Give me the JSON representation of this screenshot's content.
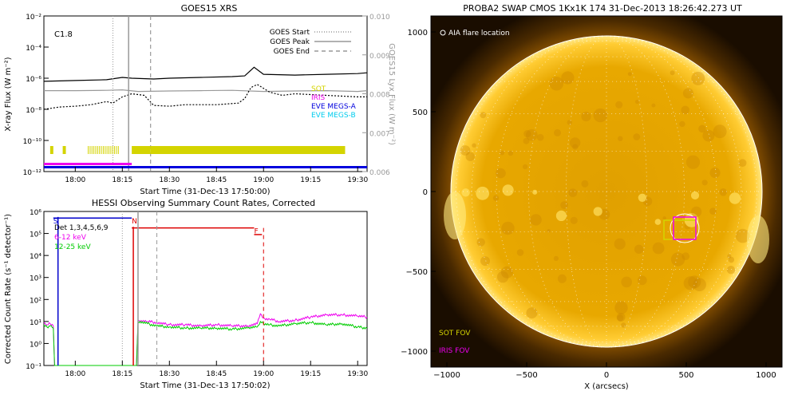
{
  "chart_data": [
    {
      "type": "line",
      "title": "GOES15 XRS",
      "xlabel": "Start Time (31-Dec-13 17:50:00)",
      "ylabel": "X-ray Flux (W m⁻²)",
      "y2label": "GOES15 Lyx Flux (W m⁻²)",
      "x_ticks": [
        "18:00",
        "18:15",
        "18:30",
        "18:45",
        "19:00",
        "19:15",
        "19:30"
      ],
      "x_minutes": [
        10,
        25,
        40,
        55,
        70,
        85,
        100
      ],
      "xlim_minutes": [
        0,
        103
      ],
      "y_log": true,
      "ylim_exp": [
        -12,
        -2
      ],
      "y_ticks": [
        "10⁻²",
        "10⁻⁴",
        "10⁻⁶",
        "10⁻⁸",
        "10⁻¹⁰",
        "10⁻¹²"
      ],
      "y_tick_exp": [
        -2,
        -4,
        -6,
        -8,
        -10,
        -12
      ],
      "y2lim": [
        0.006,
        0.01
      ],
      "y2_ticks": [
        "0.010",
        "0.009",
        "0.008",
        "0.007",
        "0.006"
      ],
      "y2_tick_values": [
        0.01,
        0.009,
        0.008,
        0.007,
        0.006
      ],
      "annotation": "C1.8",
      "legend": [
        {
          "label": "GOES Start",
          "style": "dotted"
        },
        {
          "label": "GOES Peak",
          "style": "solid"
        },
        {
          "label": "GOES End",
          "style": "dashed"
        }
      ],
      "coverage_legend": [
        {
          "label": "SOT",
          "color": "#d4d400"
        },
        {
          "label": "IRIS",
          "color": "#ee00ee"
        },
        {
          "label": "EVE MEGS-A",
          "color": "#0000dd"
        },
        {
          "label": "EVE MEGS-B",
          "color": "#00ccee"
        }
      ],
      "event_lines_minutes": {
        "start": 22,
        "peak": 27,
        "end": 34
      },
      "series": [
        {
          "name": "",
          "color": "#000000",
          "x": [
            0,
            10,
            20,
            25,
            28,
            35,
            40,
            50,
            60,
            64,
            67,
            70,
            80,
            90,
            100,
            103
          ],
          "log_y": [
            -6.2,
            -6.15,
            -6.1,
            -5.95,
            -6.0,
            -6.05,
            -6.0,
            -5.95,
            -5.9,
            -5.85,
            -5.3,
            -5.75,
            -5.8,
            -5.75,
            -5.7,
            -5.65
          ]
        },
        {
          "name": "",
          "color": "#999999",
          "x": [
            0,
            10,
            20,
            25,
            30,
            40,
            50,
            60,
            70,
            80,
            90,
            100,
            103
          ],
          "log_y": [
            -6.8,
            -6.8,
            -6.78,
            -6.75,
            -6.85,
            -6.82,
            -6.8,
            -6.78,
            -6.85,
            -6.82,
            -6.8,
            -6.85,
            -6.8
          ]
        },
        {
          "name": "",
          "color": "#000000",
          "dash": "2,2",
          "x": [
            0,
            5,
            10,
            15,
            20,
            22,
            25,
            28,
            32,
            35,
            40,
            45,
            55,
            62,
            64,
            66,
            68,
            72,
            76,
            80,
            90,
            100,
            103
          ],
          "log_y": [
            -8.0,
            -7.85,
            -7.8,
            -7.7,
            -7.5,
            -7.6,
            -7.2,
            -7.0,
            -7.1,
            -7.75,
            -7.8,
            -7.7,
            -7.7,
            -7.6,
            -7.3,
            -6.6,
            -6.4,
            -6.9,
            -7.1,
            -7.0,
            -7.1,
            -7.2,
            -7.2
          ]
        }
      ],
      "coverage_bars": {
        "sot_segments": [
          [
            2,
            3
          ],
          [
            6,
            7
          ],
          [
            14,
            24
          ],
          [
            28,
            34
          ],
          [
            34,
            96
          ]
        ],
        "iris_range": [
          0,
          28
        ],
        "eve_range": [
          0,
          103
        ]
      }
    },
    {
      "type": "line",
      "title": "HESSI Observing Summary Count Rates, Corrected",
      "xlabel": "Start Time (31-Dec-13 17:50:02)",
      "ylabel": "Corrected Count Rate (s⁻¹ detector⁻¹)",
      "x_ticks": [
        "18:00",
        "18:15",
        "18:30",
        "18:45",
        "19:00",
        "19:15",
        "19:30"
      ],
      "x_minutes": [
        10,
        25,
        40,
        55,
        70,
        85,
        100
      ],
      "xlim_minutes": [
        0,
        103
      ],
      "y_log": true,
      "ylim_exp": [
        -1,
        6
      ],
      "y_ticks": [
        "10⁶",
        "10⁵",
        "10⁴",
        "10³",
        "10²",
        "10¹",
        "10⁰",
        "10⁻¹"
      ],
      "y_tick_exp": [
        6,
        5,
        4,
        3,
        2,
        1,
        0,
        -1
      ],
      "legend_text": [
        {
          "label": "Det 1,3,4,5,6,9",
          "color": "#000000"
        },
        {
          "label": "6-12 keV",
          "color": "#ee00ee"
        },
        {
          "label": "12-25 keV",
          "color": "#00cc00"
        }
      ],
      "flag_labels": [
        {
          "label": "S",
          "color": "#0000cc",
          "minute": 3
        },
        {
          "label": "N",
          "color": "#dd0000",
          "minute": 28
        },
        {
          "label": "F",
          "color": "#dd0000",
          "minute": 67
        }
      ],
      "event_lines_minutes": {
        "start": 25,
        "peak": 30,
        "end": 36,
        "flare_end": 70,
        "saa": 4.5
      },
      "series": [
        {
          "name": "6-12 keV",
          "color": "#ee00ee",
          "x": [
            0,
            1,
            2,
            3,
            3.4,
            29.5,
            30,
            33,
            36,
            40,
            45,
            50,
            55,
            60,
            65,
            68,
            69,
            70,
            72,
            75,
            80,
            85,
            90,
            95,
            100,
            103
          ],
          "log_y": [
            0.95,
            0.85,
            0.9,
            0.8,
            -1,
            -1,
            1.05,
            1.0,
            0.95,
            0.85,
            0.85,
            0.8,
            0.85,
            0.8,
            0.8,
            0.9,
            1.35,
            1.15,
            1.1,
            1.0,
            1.05,
            1.2,
            1.3,
            1.3,
            1.25,
            1.2
          ]
        },
        {
          "name": "12-25 keV",
          "color": "#00cc00",
          "x": [
            0,
            1,
            2,
            3,
            3.4,
            29.5,
            30,
            33,
            36,
            40,
            45,
            50,
            55,
            60,
            65,
            68,
            69,
            70,
            72,
            75,
            80,
            85,
            90,
            95,
            100,
            103
          ],
          "log_y": [
            0.85,
            0.75,
            0.8,
            0.7,
            -1,
            -1,
            1.0,
            0.9,
            0.8,
            0.75,
            0.7,
            0.7,
            0.7,
            0.65,
            0.7,
            0.75,
            1.0,
            0.9,
            0.85,
            0.8,
            0.9,
            0.95,
            0.85,
            0.9,
            0.75,
            0.7
          ]
        }
      ],
      "status_bars": [
        {
          "color": "#0000cc",
          "range": [
            3,
            28
          ],
          "log_y": 5.7
        },
        {
          "color": "#dd0000",
          "range": [
            28,
            67
          ],
          "log_y": 5.25
        },
        {
          "color": "#dd0000",
          "range": [
            67,
            69.5
          ],
          "log_y": 4.95
        }
      ]
    },
    {
      "type": "scatter",
      "title": "PROBA2 SWAP CMOS 1Kx1K 174 31-Dec-2013 18:26:42.273 UT",
      "xlabel": "X (arcsecs)",
      "ylabel": "",
      "xlim": [
        -1100,
        1100
      ],
      "ylim": [
        -1100,
        1100
      ],
      "x_ticks": [
        -1000,
        -500,
        0,
        500,
        1000
      ],
      "y_ticks": [
        1000,
        500,
        0,
        -500,
        -1000
      ],
      "x_tick_labels": [
        "−1000",
        "−500",
        "0",
        "500",
        "1000"
      ],
      "y_tick_labels": [
        "1000",
        "500",
        "0",
        "−500",
        "−1000"
      ],
      "solar_radius_arcsec": 975,
      "legend": [
        {
          "label": "AIA flare location",
          "color": "#ffffff",
          "marker": "circle"
        },
        {
          "label": "SOT FOV",
          "color": "#d4d400"
        },
        {
          "label": "IRIS FOV",
          "color": "#ee00ee"
        }
      ],
      "flare_location": {
        "x": 490,
        "y": -230,
        "r": 90
      },
      "sot_fov": {
        "x0": 360,
        "x1": 560,
        "y0": -300,
        "y1": -180
      },
      "iris_fov": {
        "x0": 420,
        "x1": 560,
        "y0": -300,
        "y1": -160
      },
      "colors": {
        "disk": "#e8a800",
        "disk_edge": "#b07000",
        "background": "#1a0d00",
        "grid": "#ffffff"
      }
    }
  ]
}
